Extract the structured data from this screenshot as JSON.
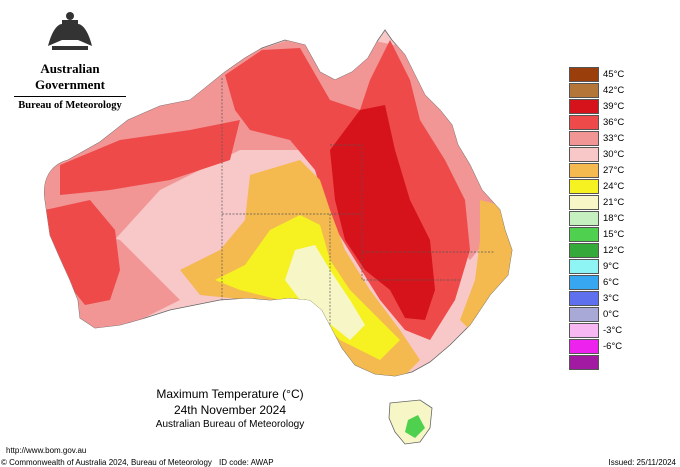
{
  "header": {
    "government": "Australian Government",
    "bureau": "Bureau of Meteorology"
  },
  "legend": {
    "items": [
      {
        "label": "45°C",
        "color": "#9a3e0c"
      },
      {
        "label": "42°C",
        "color": "#b5763a"
      },
      {
        "label": "39°C",
        "color": "#d6131a"
      },
      {
        "label": "36°C",
        "color": "#ee4a4a"
      },
      {
        "label": "33°C",
        "color": "#f19595"
      },
      {
        "label": "30°C",
        "color": "#f8c8c8"
      },
      {
        "label": "27°C",
        "color": "#f4b94f"
      },
      {
        "label": "24°C",
        "color": "#f6f222"
      },
      {
        "label": "21°C",
        "color": "#f7f6c7"
      },
      {
        "label": "18°C",
        "color": "#c7f0c0"
      },
      {
        "label": "15°C",
        "color": "#4fd14f"
      },
      {
        "label": "12°C",
        "color": "#35aa3a"
      },
      {
        "label": "9°C",
        "color": "#8ef4f4"
      },
      {
        "label": "6°C",
        "color": "#36a7f0"
      },
      {
        "label": "3°C",
        "color": "#5e70ee"
      },
      {
        "label": "0°C",
        "color": "#a9a9d8"
      },
      {
        "label": "-3°C",
        "color": "#f6b7f2"
      },
      {
        "label": "-6°C",
        "color": "#ee22ee"
      },
      {
        "label": "",
        "color": "#a219a2"
      }
    ]
  },
  "caption": {
    "title": "Maximum Temperature (°C)",
    "date": "24th November 2024",
    "org": "Australian Bureau of Meteorology"
  },
  "footer": {
    "url": "http://www.bom.gov.au",
    "copyright": "© Commonwealth of Australia 2024, Bureau of Meteorology",
    "id_code": "ID code: AWAP",
    "issued": "Issued: 25/11/2024"
  }
}
